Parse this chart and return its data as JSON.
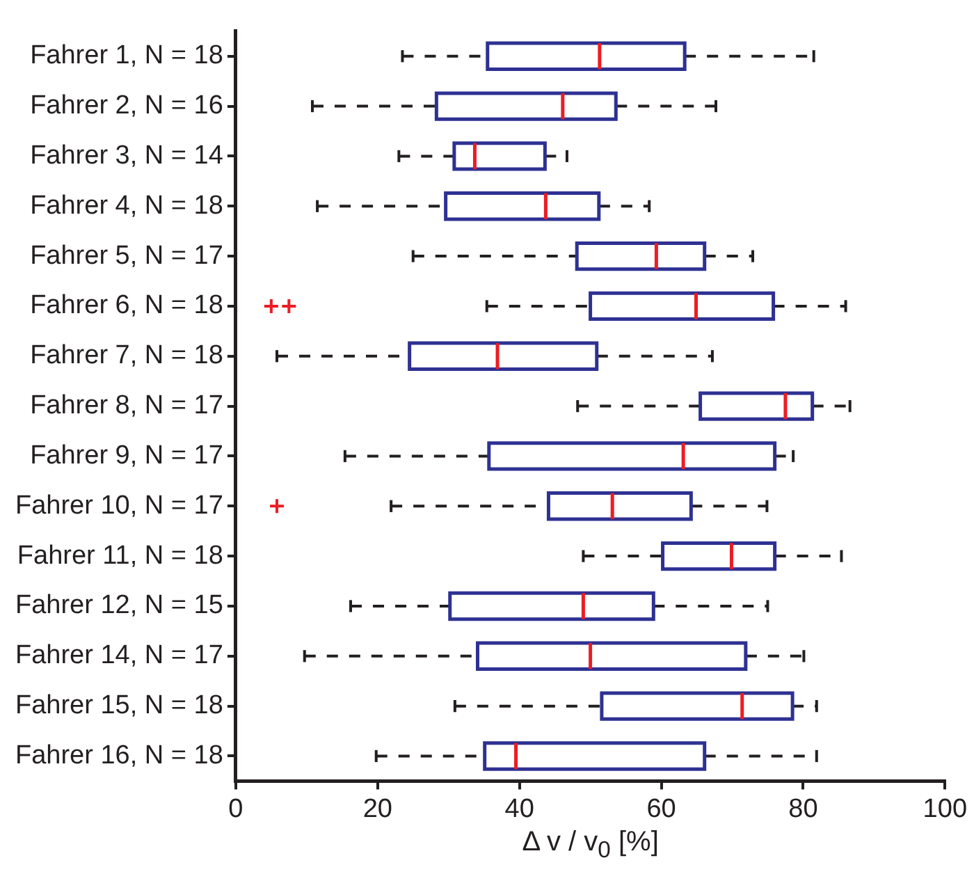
{
  "chart_data": {
    "type": "box",
    "orientation": "horizontal",
    "xlabel": "Δ v / v$_{0}$ [%]",
    "categories": [
      "Fahrer 1, N = 18",
      "Fahrer 2, N = 16",
      "Fahrer 3, N = 14",
      "Fahrer 4, N = 18",
      "Fahrer 5, N = 17",
      "Fahrer 6, N = 18",
      "Fahrer 7, N = 18",
      "Fahrer 8, N = 17",
      "Fahrer 9, N = 17",
      "Fahrer 10, N = 17",
      "Fahrer 11, N = 18",
      "Fahrer 12, N = 15",
      "Fahrer 14, N = 17",
      "Fahrer 15, N = 18",
      "Fahrer 16, N = 18"
    ],
    "xlim": [
      0,
      100
    ],
    "xticks": [
      0,
      20,
      40,
      60,
      80,
      100
    ],
    "marker": "cross",
    "series": [
      {
        "color": "#2e3192",
        "boxes": [
          {
            "low": 23.5,
            "q1": 35.5,
            "median": 51.3,
            "q3": 63.3,
            "high": 81.5
          },
          {
            "low": 10.8,
            "q1": 28.3,
            "median": 46.1,
            "q3": 53.6,
            "high": 67.7
          },
          {
            "low": 23.0,
            "q1": 30.8,
            "median": 33.7,
            "q3": 43.6,
            "high": 46.7
          },
          {
            "low": 11.5,
            "q1": 29.6,
            "median": 43.7,
            "q3": 51.2,
            "high": 58.3
          },
          {
            "low": 25.0,
            "q1": 48.1,
            "median": 59.3,
            "q3": 66.1,
            "high": 72.9
          },
          {
            "low": 35.4,
            "q1": 50.0,
            "median": 64.9,
            "q3": 75.8,
            "high": 86.0,
            "outliers": [
              5.0,
              7.5
            ]
          },
          {
            "low": 5.8,
            "q1": 24.5,
            "median": 36.9,
            "q3": 50.9,
            "high": 67.2
          },
          {
            "low": 48.2,
            "q1": 65.5,
            "median": 77.5,
            "q3": 81.3,
            "high": 86.6
          },
          {
            "low": 15.4,
            "q1": 35.7,
            "median": 63.1,
            "q3": 76.0,
            "high": 78.6
          },
          {
            "low": 21.9,
            "q1": 44.1,
            "median": 53.1,
            "q3": 64.2,
            "high": 74.9,
            "outliers": [
              5.8
            ]
          },
          {
            "low": 49.0,
            "q1": 60.2,
            "median": 69.9,
            "q3": 76.0,
            "high": 85.4
          },
          {
            "low": 16.2,
            "q1": 30.2,
            "median": 49.0,
            "q3": 58.9,
            "high": 75.0
          },
          {
            "low": 9.7,
            "q1": 34.1,
            "median": 50.0,
            "q3": 71.9,
            "high": 80.1
          },
          {
            "low": 30.9,
            "q1": 51.6,
            "median": 71.4,
            "q3": 78.5,
            "high": 81.9
          },
          {
            "low": 19.8,
            "q1": 35.1,
            "median": 39.5,
            "q3": 66.1,
            "high": 81.9
          }
        ]
      }
    ]
  }
}
